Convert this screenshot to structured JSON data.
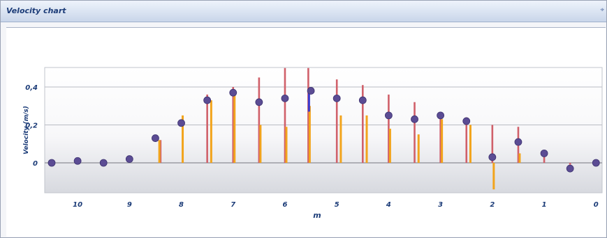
{
  "window": {
    "title": "Velocity chart",
    "pin_glyph": "⌖"
  },
  "colors": {
    "accent": "#1c3c78",
    "stick_red": "#d0606a",
    "stick_orange": "#f2a41c",
    "marker": "#5b4c94"
  },
  "chart_data": {
    "type": "scatter",
    "title": "",
    "xlabel": "m",
    "ylabel": "Velocity (m/s)",
    "x_axis_reversed": true,
    "xlim": [
      10.5,
      -0.05
    ],
    "ylim": [
      -0.15,
      0.5
    ],
    "x_ticks": [
      10,
      9,
      8,
      7,
      6,
      5,
      4,
      3,
      2,
      1,
      0
    ],
    "x_tick_labels": [
      "10",
      "9",
      "8",
      "7",
      "6",
      "5",
      "4",
      "3",
      "2",
      "1",
      "0"
    ],
    "y_ticks": [
      0,
      0.2,
      0.4
    ],
    "y_tick_labels": [
      "0",
      "0,2",
      "0,4"
    ],
    "grid": true,
    "series": [
      {
        "x": [
          10.5,
          10,
          9.5,
          9,
          8.5,
          8,
          7.5,
          7,
          6.5,
          6,
          5.5,
          5,
          4.5,
          4,
          3.5,
          3,
          2.5,
          2,
          1.5,
          1,
          0.5,
          0
        ],
        "values": [
          0,
          0.01,
          0,
          0.02,
          0.13,
          0.21,
          0.33,
          0.37,
          0.32,
          0.34,
          0.38,
          0.34,
          0.33,
          0.25,
          0.23,
          0.25,
          0.22,
          0.03,
          0.11,
          0.05,
          -0.03,
          0
        ]
      }
    ],
    "sticks_red": [
      {
        "x": 8.4,
        "top": 0.12
      },
      {
        "x": 7.5,
        "top": 0.36
      },
      {
        "x": 7.0,
        "top": 0.4
      },
      {
        "x": 6.5,
        "top": 0.45
      },
      {
        "x": 6.0,
        "top": 0.5
      },
      {
        "x": 5.55,
        "top": 0.5
      },
      {
        "x": 5.0,
        "top": 0.44
      },
      {
        "x": 4.5,
        "top": 0.41
      },
      {
        "x": 4.0,
        "top": 0.36
      },
      {
        "x": 3.5,
        "top": 0.32
      },
      {
        "x": 3.0,
        "top": 0.26
      },
      {
        "x": 2.5,
        "top": 0.24
      },
      {
        "x": 2.0,
        "top": 0.2
      },
      {
        "x": 1.5,
        "top": 0.19
      },
      {
        "x": 1.0,
        "top": 0.04
      },
      {
        "x": 0.5,
        "top": -0.01
      }
    ],
    "sticks_orange": [
      {
        "x": 8.45,
        "top": 0.12,
        "bottom": 0
      },
      {
        "x": 8.0,
        "top": 0.25,
        "bottom": 0
      },
      {
        "x": 7.45,
        "top": 0.33,
        "bottom": 0
      },
      {
        "x": 7.0,
        "top": 0.38,
        "bottom": 0
      },
      {
        "x": 6.5,
        "top": 0.2,
        "bottom": 0
      },
      {
        "x": 6.0,
        "top": 0.19,
        "bottom": 0
      },
      {
        "x": 5.55,
        "top": 0.3,
        "bottom": 0
      },
      {
        "x": 4.95,
        "top": 0.25,
        "bottom": 0
      },
      {
        "x": 4.45,
        "top": 0.25,
        "bottom": 0
      },
      {
        "x": 4.0,
        "top": 0.18,
        "bottom": 0
      },
      {
        "x": 3.45,
        "top": 0.15,
        "bottom": 0
      },
      {
        "x": 3.0,
        "top": 0.23,
        "bottom": 0
      },
      {
        "x": 2.45,
        "top": 0.2,
        "bottom": 0
      },
      {
        "x": 2.0,
        "top": 0,
        "bottom": -0.14
      },
      {
        "x": 1.5,
        "top": 0.05,
        "bottom": 0
      }
    ],
    "stick_blue": [
      {
        "x": 5.55,
        "top": 0.38,
        "bottom": 0.27
      }
    ]
  }
}
